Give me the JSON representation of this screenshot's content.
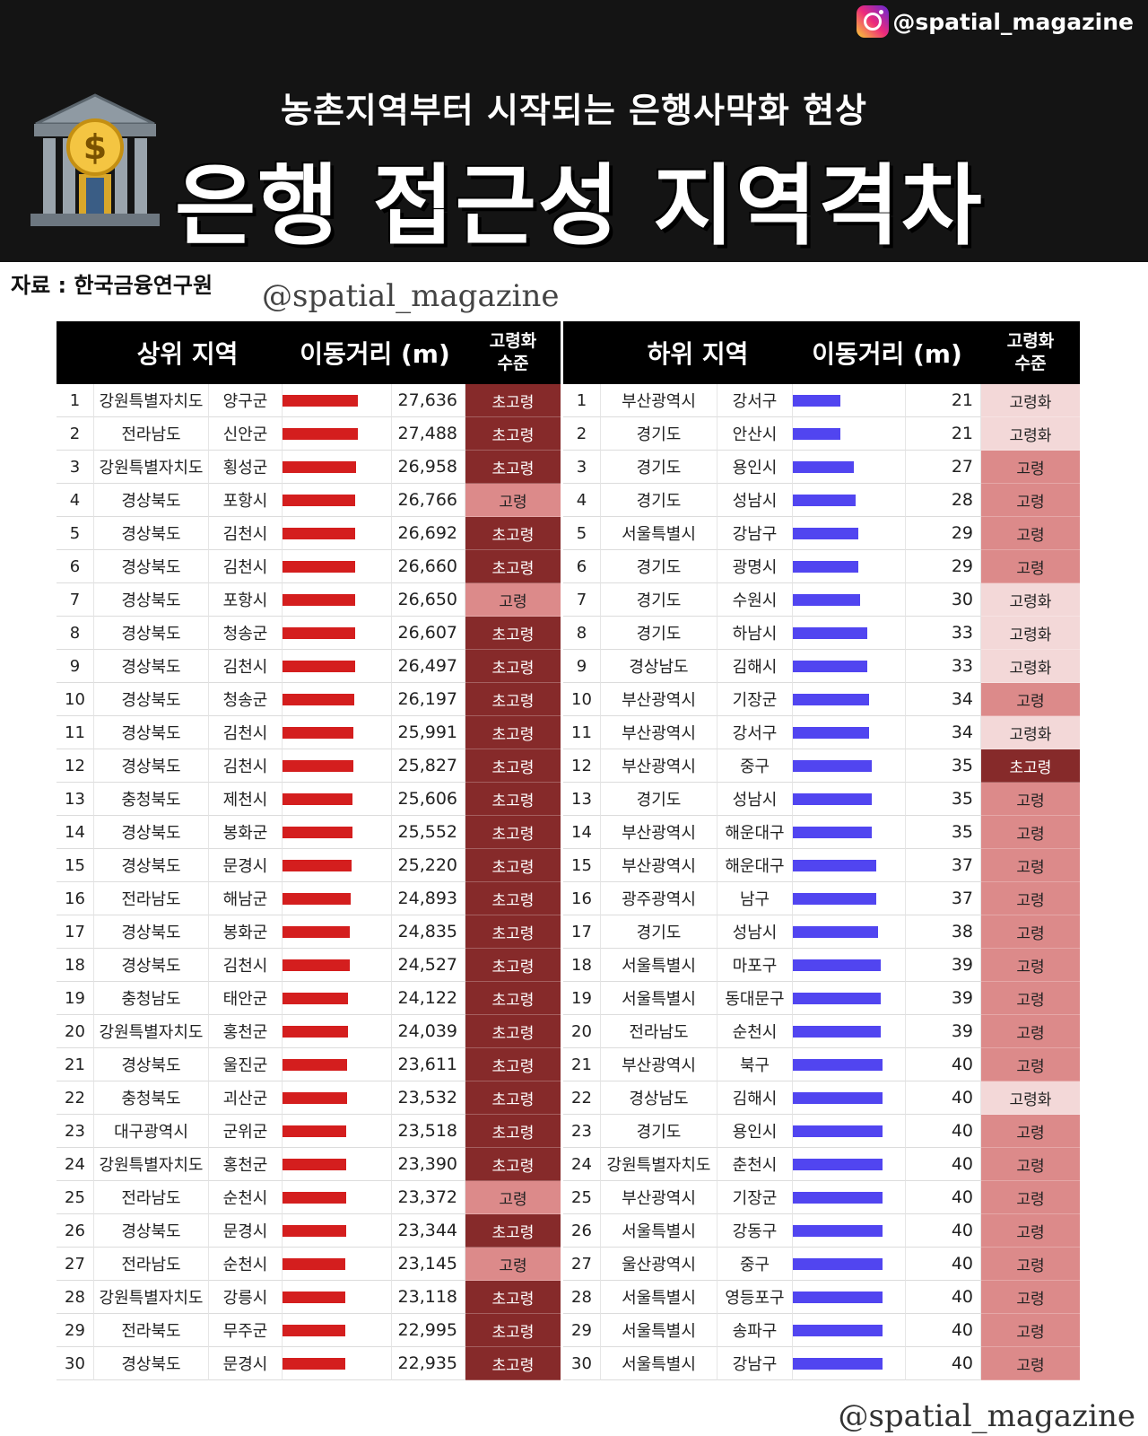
{
  "brand": {
    "handle": "@spatial_magazine",
    "watermark_mid": "@spatial_magazine",
    "watermark_bottom": "@spatial_magazine"
  },
  "header": {
    "subtitle": "농촌지역부터 시작되는 은행사막화 현상",
    "title": "은행 접근성 지역격차"
  },
  "source": "자료 : 한국금융연구원",
  "colors": {
    "header_bg": "#141414",
    "top_bar": "#d41e1e",
    "bottom_bar": "#5145f0",
    "level_초고령": "#862a2a",
    "level_고령": "#dc8a8a",
    "level_고령화": "#f3d8d8",
    "level_text_초고령": "#ffffff",
    "level_text_고령": "#222222",
    "level_text_고령화": "#222222"
  },
  "chart_data": [
    {
      "type": "table",
      "headers": {
        "region": "상위 지역",
        "distance": "이동거리 (m)",
        "aging_l1": "고령화",
        "aging_l2": "수준"
      },
      "bar_max": 27636,
      "rows": [
        {
          "rank": "1",
          "province": "강원특별자치도",
          "district": "양구군",
          "distance": 27636,
          "distance_label": "27,636",
          "level": "초고령"
        },
        {
          "rank": "2",
          "province": "전라남도",
          "district": "신안군",
          "distance": 27488,
          "distance_label": "27,488",
          "level": "초고령"
        },
        {
          "rank": "3",
          "province": "강원특별자치도",
          "district": "횡성군",
          "distance": 26958,
          "distance_label": "26,958",
          "level": "초고령"
        },
        {
          "rank": "4",
          "province": "경상북도",
          "district": "포항시",
          "distance": 26766,
          "distance_label": "26,766",
          "level": "고령"
        },
        {
          "rank": "5",
          "province": "경상북도",
          "district": "김천시",
          "distance": 26692,
          "distance_label": "26,692",
          "level": "초고령"
        },
        {
          "rank": "6",
          "province": "경상북도",
          "district": "김천시",
          "distance": 26660,
          "distance_label": "26,660",
          "level": "초고령"
        },
        {
          "rank": "7",
          "province": "경상북도",
          "district": "포항시",
          "distance": 26650,
          "distance_label": "26,650",
          "level": "고령"
        },
        {
          "rank": "8",
          "province": "경상북도",
          "district": "청송군",
          "distance": 26607,
          "distance_label": "26,607",
          "level": "초고령"
        },
        {
          "rank": "9",
          "province": "경상북도",
          "district": "김천시",
          "distance": 26497,
          "distance_label": "26,497",
          "level": "초고령"
        },
        {
          "rank": "10",
          "province": "경상북도",
          "district": "청송군",
          "distance": 26197,
          "distance_label": "26,197",
          "level": "초고령"
        },
        {
          "rank": "11",
          "province": "경상북도",
          "district": "김천시",
          "distance": 25991,
          "distance_label": "25,991",
          "level": "초고령"
        },
        {
          "rank": "12",
          "province": "경상북도",
          "district": "김천시",
          "distance": 25827,
          "distance_label": "25,827",
          "level": "초고령"
        },
        {
          "rank": "13",
          "province": "충청북도",
          "district": "제천시",
          "distance": 25606,
          "distance_label": "25,606",
          "level": "초고령"
        },
        {
          "rank": "14",
          "province": "경상북도",
          "district": "봉화군",
          "distance": 25552,
          "distance_label": "25,552",
          "level": "초고령"
        },
        {
          "rank": "15",
          "province": "경상북도",
          "district": "문경시",
          "distance": 25220,
          "distance_label": "25,220",
          "level": "초고령"
        },
        {
          "rank": "16",
          "province": "전라남도",
          "district": "해남군",
          "distance": 24893,
          "distance_label": "24,893",
          "level": "초고령"
        },
        {
          "rank": "17",
          "province": "경상북도",
          "district": "봉화군",
          "distance": 24835,
          "distance_label": "24,835",
          "level": "초고령"
        },
        {
          "rank": "18",
          "province": "경상북도",
          "district": "김천시",
          "distance": 24527,
          "distance_label": "24,527",
          "level": "초고령"
        },
        {
          "rank": "19",
          "province": "충청남도",
          "district": "태안군",
          "distance": 24122,
          "distance_label": "24,122",
          "level": "초고령"
        },
        {
          "rank": "20",
          "province": "강원특별자치도",
          "district": "홍천군",
          "distance": 24039,
          "distance_label": "24,039",
          "level": "초고령"
        },
        {
          "rank": "21",
          "province": "경상북도",
          "district": "울진군",
          "distance": 23611,
          "distance_label": "23,611",
          "level": "초고령"
        },
        {
          "rank": "22",
          "province": "충청북도",
          "district": "괴산군",
          "distance": 23532,
          "distance_label": "23,532",
          "level": "초고령"
        },
        {
          "rank": "23",
          "province": "대구광역시",
          "district": "군위군",
          "distance": 23518,
          "distance_label": "23,518",
          "level": "초고령"
        },
        {
          "rank": "24",
          "province": "강원특별자치도",
          "district": "홍천군",
          "distance": 23390,
          "distance_label": "23,390",
          "level": "초고령"
        },
        {
          "rank": "25",
          "province": "전라남도",
          "district": "순천시",
          "distance": 23372,
          "distance_label": "23,372",
          "level": "고령"
        },
        {
          "rank": "26",
          "province": "경상북도",
          "district": "문경시",
          "distance": 23344,
          "distance_label": "23,344",
          "level": "초고령"
        },
        {
          "rank": "27",
          "province": "전라남도",
          "district": "순천시",
          "distance": 23145,
          "distance_label": "23,145",
          "level": "고령"
        },
        {
          "rank": "28",
          "province": "강원특별자치도",
          "district": "강릉시",
          "distance": 23118,
          "distance_label": "23,118",
          "level": "초고령"
        },
        {
          "rank": "29",
          "province": "전라북도",
          "district": "무주군",
          "distance": 22995,
          "distance_label": "22,995",
          "level": "초고령"
        },
        {
          "rank": "30",
          "province": "경상북도",
          "district": "문경시",
          "distance": 22935,
          "distance_label": "22,935",
          "level": "초고령"
        }
      ]
    },
    {
      "type": "table",
      "headers": {
        "region": "하위 지역",
        "distance": "이동거리 (m)",
        "aging_l1": "고령화",
        "aging_l2": "수준"
      },
      "bar_max": 40,
      "rows": [
        {
          "rank": "1",
          "province": "부산광역시",
          "district": "강서구",
          "distance": 21,
          "distance_label": "21",
          "level": "고령화"
        },
        {
          "rank": "2",
          "province": "경기도",
          "district": "안산시",
          "distance": 21,
          "distance_label": "21",
          "level": "고령화"
        },
        {
          "rank": "3",
          "province": "경기도",
          "district": "용인시",
          "distance": 27,
          "distance_label": "27",
          "level": "고령"
        },
        {
          "rank": "4",
          "province": "경기도",
          "district": "성남시",
          "distance": 28,
          "distance_label": "28",
          "level": "고령"
        },
        {
          "rank": "5",
          "province": "서울특별시",
          "district": "강남구",
          "distance": 29,
          "distance_label": "29",
          "level": "고령"
        },
        {
          "rank": "6",
          "province": "경기도",
          "district": "광명시",
          "distance": 29,
          "distance_label": "29",
          "level": "고령"
        },
        {
          "rank": "7",
          "province": "경기도",
          "district": "수원시",
          "distance": 30,
          "distance_label": "30",
          "level": "고령화"
        },
        {
          "rank": "8",
          "province": "경기도",
          "district": "하남시",
          "distance": 33,
          "distance_label": "33",
          "level": "고령화"
        },
        {
          "rank": "9",
          "province": "경상남도",
          "district": "김해시",
          "distance": 33,
          "distance_label": "33",
          "level": "고령화"
        },
        {
          "rank": "10",
          "province": "부산광역시",
          "district": "기장군",
          "distance": 34,
          "distance_label": "34",
          "level": "고령"
        },
        {
          "rank": "11",
          "province": "부산광역시",
          "district": "강서구",
          "distance": 34,
          "distance_label": "34",
          "level": "고령화"
        },
        {
          "rank": "12",
          "province": "부산광역시",
          "district": "중구",
          "distance": 35,
          "distance_label": "35",
          "level": "초고령"
        },
        {
          "rank": "13",
          "province": "경기도",
          "district": "성남시",
          "distance": 35,
          "distance_label": "35",
          "level": "고령"
        },
        {
          "rank": "14",
          "province": "부산광역시",
          "district": "해운대구",
          "distance": 35,
          "distance_label": "35",
          "level": "고령"
        },
        {
          "rank": "15",
          "province": "부산광역시",
          "district": "해운대구",
          "distance": 37,
          "distance_label": "37",
          "level": "고령"
        },
        {
          "rank": "16",
          "province": "광주광역시",
          "district": "남구",
          "distance": 37,
          "distance_label": "37",
          "level": "고령"
        },
        {
          "rank": "17",
          "province": "경기도",
          "district": "성남시",
          "distance": 38,
          "distance_label": "38",
          "level": "고령"
        },
        {
          "rank": "18",
          "province": "서울특별시",
          "district": "마포구",
          "distance": 39,
          "distance_label": "39",
          "level": "고령"
        },
        {
          "rank": "19",
          "province": "서울특별시",
          "district": "동대문구",
          "distance": 39,
          "distance_label": "39",
          "level": "고령"
        },
        {
          "rank": "20",
          "province": "전라남도",
          "district": "순천시",
          "distance": 39,
          "distance_label": "39",
          "level": "고령"
        },
        {
          "rank": "21",
          "province": "부산광역시",
          "district": "북구",
          "distance": 40,
          "distance_label": "40",
          "level": "고령"
        },
        {
          "rank": "22",
          "province": "경상남도",
          "district": "김해시",
          "distance": 40,
          "distance_label": "40",
          "level": "고령화"
        },
        {
          "rank": "23",
          "province": "경기도",
          "district": "용인시",
          "distance": 40,
          "distance_label": "40",
          "level": "고령"
        },
        {
          "rank": "24",
          "province": "강원특별자치도",
          "district": "춘천시",
          "distance": 40,
          "distance_label": "40",
          "level": "고령"
        },
        {
          "rank": "25",
          "province": "부산광역시",
          "district": "기장군",
          "distance": 40,
          "distance_label": "40",
          "level": "고령"
        },
        {
          "rank": "26",
          "province": "서울특별시",
          "district": "강동구",
          "distance": 40,
          "distance_label": "40",
          "level": "고령"
        },
        {
          "rank": "27",
          "province": "울산광역시",
          "district": "중구",
          "distance": 40,
          "distance_label": "40",
          "level": "고령"
        },
        {
          "rank": "28",
          "province": "서울특별시",
          "district": "영등포구",
          "distance": 40,
          "distance_label": "40",
          "level": "고령"
        },
        {
          "rank": "29",
          "province": "서울특별시",
          "district": "송파구",
          "distance": 40,
          "distance_label": "40",
          "level": "고령"
        },
        {
          "rank": "30",
          "province": "서울특별시",
          "district": "강남구",
          "distance": 40,
          "distance_label": "40",
          "level": "고령"
        }
      ]
    }
  ]
}
